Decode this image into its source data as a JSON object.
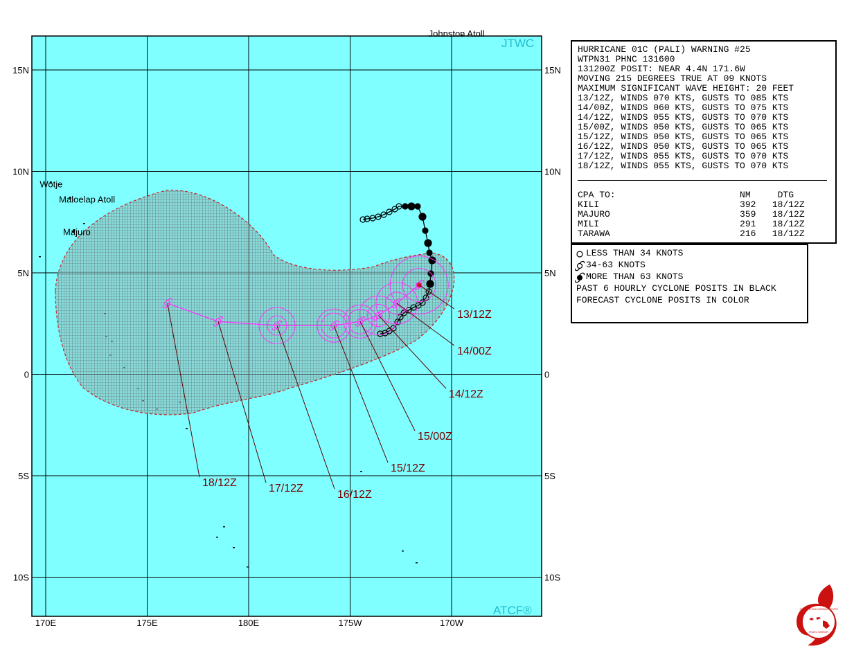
{
  "map": {
    "source_label": "JTWC",
    "software_label": "ATCF®",
    "lat_labels": [
      "15N",
      "10N",
      "5N",
      "0",
      "5S",
      "10S"
    ],
    "lon_labels": [
      "170E",
      "175E",
      "180E",
      "175W",
      "170W"
    ],
    "places": [
      {
        "name": "Johnston Atoll",
        "lat": 16.7,
        "lon": -169.5
      },
      {
        "name": "Wotje",
        "lat": 9.45,
        "lon": 170.25
      },
      {
        "name": "Maloelap Atoll",
        "lat": 8.7,
        "lon": 171.2
      },
      {
        "name": "Majuro",
        "lat": 7.1,
        "lon": 171.4
      }
    ],
    "colors": {
      "ocean": "#7fffff",
      "grid": "#000000",
      "forecast": "#ff33ff",
      "danger": "#cc2222",
      "dtg_label": "#7a0000",
      "logo": "#cc1111"
    }
  },
  "forecast_track": [
    {
      "label": "13/12Z",
      "lat": 4.4,
      "lon": -171.6
    },
    {
      "label": "14/00Z",
      "lat": 3.5,
      "lon": -172.7
    },
    {
      "label": "14/12Z",
      "lat": 2.9,
      "lon": -173.6
    },
    {
      "label": "15/00Z",
      "lat": 2.6,
      "lon": -174.5
    },
    {
      "label": "15/12Z",
      "lat": 2.4,
      "lon": -175.8
    },
    {
      "label": "16/12Z",
      "lat": 2.4,
      "lon": -178.6
    },
    {
      "label": "17/12Z",
      "lat": 2.6,
      "lon": 178.5
    },
    {
      "label": "18/12Z",
      "lat": 3.5,
      "lon": 176.0
    }
  ],
  "warning": {
    "lines": [
      "HURRICANE 01C (PALI) WARNING #25",
      "WTPN31 PHNC 131600",
      "131200Z POSIT: NEAR 4.4N 171.6W",
      "MOVING 215 DEGREES TRUE AT 09 KNOTS",
      "MAXIMUM SIGNIFICANT WAVE HEIGHT: 20 FEET",
      "13/12Z, WINDS 070 KTS, GUSTS TO 085 KTS",
      "14/00Z, WINDS 060 KTS, GUSTS TO 075 KTS",
      "14/12Z, WINDS 055 KTS, GUSTS TO 070 KTS",
      "15/00Z, WINDS 050 KTS, GUSTS TO 065 KTS",
      "15/12Z, WINDS 050 KTS, GUSTS TO 065 KTS",
      "16/12Z, WINDS 050 KTS, GUSTS TO 065 KTS",
      "17/12Z, WINDS 055 KTS, GUSTS TO 070 KTS",
      "18/12Z, WINDS 055 KTS, GUSTS TO 070 KTS"
    ],
    "cpa_header": "CPA TO:                       NM     DTG",
    "cpa_rows": [
      "KILI                          392   18/12Z",
      "MAJURO                        359   18/12Z",
      "MILI                          291   18/12Z",
      "TARAWA                        216   18/12Z"
    ]
  },
  "legend": {
    "lines": [
      "LESS THAN 34 KNOTS",
      "34-63 KNOTS",
      "MORE THAN 63 KNOTS",
      "PAST 6 HOURLY CYCLONE POSITS IN BLACK",
      "FORECAST CYCLONE POSITS IN COLOR"
    ]
  },
  "logo": {
    "title": "JOINT TYPHOON WARNING CENTER",
    "subtitle": "PEARL HARBOR"
  }
}
